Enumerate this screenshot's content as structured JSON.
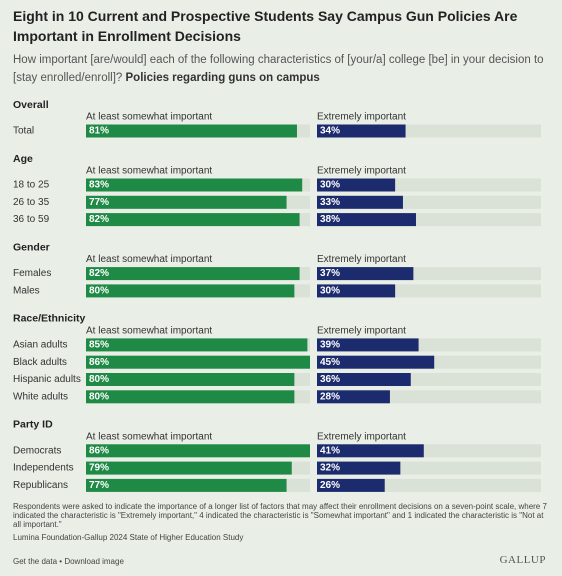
{
  "chart_data": {
    "type": "bar",
    "title": "Eight in 10 Current and Prospective Students Say Campus Gun Policies Are Important in Enrollment Decisions",
    "subtitle": "How important [are/would] each of the following characteristics of [your/a] college [be] in your decision to [stay enrolled/enroll]?",
    "subtitle_bold": "Policies regarding guns on campus",
    "xlim": [
      0,
      86
    ],
    "groups": [
      {
        "name": "Overall",
        "categories": [
          "Total"
        ],
        "series": [
          {
            "name": "At least somewhat important",
            "color": "#1e8a45",
            "values": [
              81
            ],
            "value_labels": [
              "81%"
            ]
          },
          {
            "name": "Extremely important",
            "color": "#1c2b6e",
            "values": [
              34
            ],
            "value_labels": [
              "34%"
            ]
          }
        ]
      },
      {
        "name": "Age",
        "categories": [
          "18 to 25",
          "26 to 35",
          "36 to 59"
        ],
        "series": [
          {
            "name": "At least somewhat important",
            "color": "#1e8a45",
            "values": [
              83,
              77,
              82
            ],
            "value_labels": [
              "83%",
              "77%",
              "82%"
            ]
          },
          {
            "name": "Extremely important",
            "color": "#1c2b6e",
            "values": [
              30,
              33,
              38
            ],
            "value_labels": [
              "30%",
              "33%",
              "38%"
            ]
          }
        ]
      },
      {
        "name": "Gender",
        "categories": [
          "Females",
          "Males"
        ],
        "series": [
          {
            "name": "At least somewhat important",
            "color": "#1e8a45",
            "values": [
              82,
              80
            ],
            "value_labels": [
              "82%",
              "80%"
            ]
          },
          {
            "name": "Extremely important",
            "color": "#1c2b6e",
            "values": [
              37,
              30
            ],
            "value_labels": [
              "37%",
              "30%"
            ]
          }
        ]
      },
      {
        "name": "Race/Ethnicity",
        "categories": [
          "Asian adults",
          "Black adults",
          "Hispanic adults",
          "White adults"
        ],
        "series": [
          {
            "name": "At least somewhat important",
            "color": "#1e8a45",
            "values": [
              85,
              86,
              80,
              80
            ],
            "value_labels": [
              "85%",
              "86%",
              "80%",
              "80%"
            ]
          },
          {
            "name": "Extremely important",
            "color": "#1c2b6e",
            "values": [
              39,
              45,
              36,
              28
            ],
            "value_labels": [
              "39%",
              "45%",
              "36%",
              "28%"
            ]
          }
        ]
      },
      {
        "name": "Party ID",
        "categories": [
          "Democrats",
          "Independents",
          "Republicans"
        ],
        "series": [
          {
            "name": "At least somewhat important",
            "color": "#1e8a45",
            "values": [
              86,
              79,
              77
            ],
            "value_labels": [
              "86%",
              "79%",
              "77%"
            ]
          },
          {
            "name": "Extremely important",
            "color": "#1c2b6e",
            "values": [
              41,
              32,
              26
            ],
            "value_labels": [
              "41%",
              "32%",
              "26%"
            ]
          }
        ]
      }
    ],
    "footnote": "Respondents were asked to indicate the importance of a longer list of factors that may affect their enrollment decisions on a seven-point scale, where 7 indicated the characteristic is \"Extremely important,\" 4 indicated the characteristic is \"Somewhat important\" and 1 indicated the characteristic is \"Not at all important.\"",
    "source": "Lumina Foundation-Gallup 2024 State of Higher Education Study",
    "footer_links": [
      "Get the data",
      "Download image"
    ],
    "footer_separator": "•",
    "logo": "GALLUP"
  }
}
